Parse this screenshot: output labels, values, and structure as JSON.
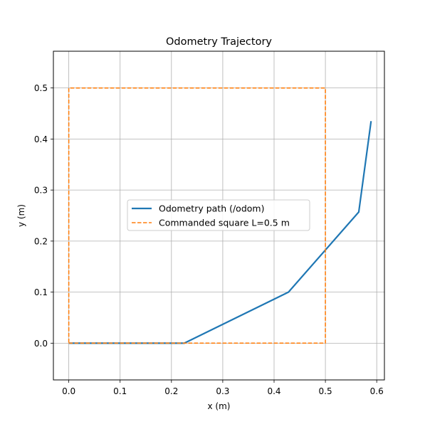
{
  "chart_data": {
    "type": "line",
    "title": "Odometry Trajectory",
    "xlabel": "x (m)",
    "ylabel": "y (m)",
    "xlim": [
      -0.03,
      0.615
    ],
    "ylim": [
      -0.072,
      0.572
    ],
    "xticks": [
      0.0,
      0.1,
      0.2,
      0.3,
      0.4,
      0.5,
      0.6
    ],
    "xtick_labels": [
      "0.0",
      "0.1",
      "0.2",
      "0.3",
      "0.4",
      "0.5",
      "0.6"
    ],
    "yticks": [
      0.0,
      0.1,
      0.2,
      0.3,
      0.4,
      0.5
    ],
    "ytick_labels": [
      "0.0",
      "0.1",
      "0.2",
      "0.3",
      "0.4",
      "0.5"
    ],
    "grid": true,
    "legend_position": "center",
    "series": [
      {
        "name": "Odometry path (/odom)",
        "color": "#1f77b4",
        "style": "solid",
        "x": [
          0.0,
          0.225,
          0.428,
          0.565,
          0.589
        ],
        "y": [
          0.0,
          0.0,
          0.1,
          0.257,
          0.435
        ]
      },
      {
        "name": "Commanded square L=0.5 m",
        "color": "#ff7f0e",
        "style": "dashed",
        "x": [
          0.0,
          0.5,
          0.5,
          0.0,
          0.0
        ],
        "y": [
          0.0,
          0.0,
          0.5,
          0.5,
          0.0
        ]
      }
    ]
  }
}
